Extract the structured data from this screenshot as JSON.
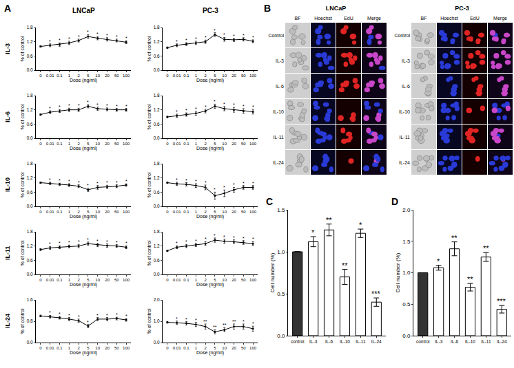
{
  "panel_labels": [
    "A",
    "B",
    "C",
    "D"
  ],
  "panel_a": {
    "columns": [
      "LNCaP",
      "PC-3"
    ],
    "rows": [
      "IL-3",
      "IL-6",
      "IL-10",
      "IL-11",
      "IL-24"
    ]
  },
  "panel_b": {
    "groups": [
      "LNCaP",
      "PC-3"
    ],
    "columns": [
      "BF",
      "Hoechst",
      "EdU",
      "Merge"
    ],
    "rows": [
      "Control",
      "IL-3",
      "IL-6",
      "IL-10",
      "IL-11",
      "IL-24"
    ]
  },
  "chart_data": [
    {
      "type": "line",
      "x_label": "Dose (ng/ml)",
      "y_label": "% of control",
      "categories": [
        "0",
        "0.01",
        "0.1",
        "1",
        "2",
        "5",
        "10",
        "20",
        "50",
        "100"
      ],
      "values": [
        1.0,
        1.05,
        1.08,
        1.15,
        1.25,
        1.42,
        1.35,
        1.3,
        1.25,
        1.18
      ],
      "errors": [
        0.03,
        0.06,
        0.07,
        0.07,
        0.06,
        0.08,
        0.07,
        0.07,
        0.06,
        0.06
      ],
      "significance": [
        null,
        "*",
        "*",
        "*",
        "*",
        "*",
        "*",
        "*",
        "*",
        "*"
      ],
      "color": "#000000",
      "marker": "circle",
      "ylim": [
        0,
        1.8
      ],
      "yticks": [
        {
          "value": 0,
          "label": "0.0"
        },
        0.6,
        1.2,
        1.8
      ]
    },
    {
      "type": "line",
      "x_label": "Dose (ng/ml)",
      "y_label": "% of control",
      "categories": [
        "0",
        "0.01",
        "0.1",
        "1",
        "2",
        "5",
        "10",
        "20",
        "50",
        "100"
      ],
      "values": [
        0.95,
        1.05,
        1.1,
        1.15,
        1.2,
        1.5,
        1.3,
        1.28,
        1.3,
        1.22
      ],
      "errors": [
        0.03,
        0.06,
        0.06,
        0.07,
        0.07,
        0.08,
        0.08,
        0.07,
        0.07,
        0.06
      ],
      "significance": [
        null,
        "*",
        "*",
        "*",
        "*",
        "*",
        "*",
        "*",
        "*",
        "*"
      ],
      "color": "#000000",
      "marker": "circle",
      "ylim": [
        0,
        1.8
      ],
      "yticks": [
        {
          "value": 0,
          "label": "0.0"
        },
        0.6,
        1.2,
        1.8
      ]
    },
    {
      "type": "line",
      "x_label": "Dose (ng/ml)",
      "y_label": "% of control",
      "categories": [
        "0",
        "0.01",
        "0.1",
        "1",
        "2",
        "5",
        "10",
        "20",
        "50",
        "100"
      ],
      "values": [
        1.0,
        1.1,
        1.15,
        1.2,
        1.2,
        1.35,
        1.25,
        1.22,
        1.2,
        1.2
      ],
      "errors": [
        0.03,
        0.06,
        0.06,
        0.07,
        0.07,
        0.07,
        0.07,
        0.06,
        0.06,
        0.06
      ],
      "significance": [
        null,
        "*",
        "*",
        "*",
        "*",
        "*",
        "*",
        "*",
        "*",
        "*"
      ],
      "color": "#000000",
      "marker": "circle",
      "ylim": [
        0,
        1.8
      ],
      "yticks": [
        {
          "value": 0,
          "label": "0.0"
        },
        0.6,
        1.2,
        1.8
      ]
    },
    {
      "type": "line",
      "x_label": "Dose (ng/ml)",
      "y_label": "% of control",
      "categories": [
        "0",
        "0.01",
        "0.1",
        "1",
        "2",
        "5",
        "10",
        "20",
        "50",
        "100"
      ],
      "values": [
        0.9,
        0.95,
        1.0,
        1.05,
        1.15,
        1.35,
        1.25,
        1.2,
        1.15,
        1.12
      ],
      "errors": [
        0.03,
        0.07,
        0.07,
        0.08,
        0.08,
        0.09,
        0.09,
        0.1,
        0.1,
        0.1
      ],
      "significance": [
        null,
        "*",
        "*",
        "*",
        "*",
        "*",
        "*",
        "*",
        "*",
        "*"
      ],
      "color": "#000000",
      "marker": "circle",
      "ylim": [
        0,
        1.8
      ],
      "yticks": [
        {
          "value": 0,
          "label": "0.0"
        },
        0.6,
        1.2,
        1.8
      ]
    },
    {
      "type": "line",
      "x_label": "Dose (ng/ml)",
      "y_label": "% of control",
      "categories": [
        "0",
        "0.01",
        "0.1",
        "1",
        "2",
        "5",
        "10",
        "20",
        "50",
        "100"
      ],
      "values": [
        1.0,
        0.97,
        0.93,
        0.9,
        0.85,
        0.7,
        0.8,
        0.82,
        0.85,
        0.9
      ],
      "errors": [
        0.03,
        0.05,
        0.05,
        0.06,
        0.06,
        0.07,
        0.08,
        0.07,
        0.06,
        0.05
      ],
      "significance": [
        null,
        "*",
        "*",
        "*",
        "*",
        "*",
        "*",
        "*",
        "*",
        "*"
      ],
      "color": "#000000",
      "marker": "circle",
      "ylim": [
        0,
        1.8
      ],
      "yticks": [
        {
          "value": 0,
          "label": "0.0"
        },
        0.6,
        1.2,
        1.8
      ]
    },
    {
      "type": "line",
      "x_label": "Dose (ng/ml)",
      "y_label": "% of control",
      "categories": [
        "0",
        "0.01",
        "0.1",
        "1",
        "2",
        "5",
        "10",
        "20",
        "50",
        "100"
      ],
      "values": [
        1.0,
        0.95,
        0.93,
        0.88,
        0.8,
        0.45,
        0.55,
        0.7,
        0.8,
        0.8
      ],
      "errors": [
        0.03,
        0.07,
        0.07,
        0.08,
        0.1,
        0.15,
        0.14,
        0.1,
        0.08,
        0.08
      ],
      "significance": [
        null,
        "*",
        "*",
        "*",
        "*",
        "*",
        "*",
        "*",
        "*",
        "*"
      ],
      "color": "#000000",
      "marker": "circle",
      "ylim": [
        0,
        1.8
      ],
      "yticks": [
        {
          "value": 0,
          "label": "0.0"
        },
        0.6,
        1.2,
        1.8
      ]
    },
    {
      "type": "line",
      "x_label": "Dose (ng/ml)",
      "y_label": "% of control",
      "categories": [
        "0",
        "0.01",
        "0.1",
        "1",
        "2",
        "5",
        "10",
        "20",
        "50",
        "100"
      ],
      "values": [
        1.05,
        1.12,
        1.15,
        1.18,
        1.2,
        1.3,
        1.25,
        1.22,
        1.2,
        1.15
      ],
      "errors": [
        0.04,
        0.06,
        0.06,
        0.06,
        0.07,
        0.07,
        0.07,
        0.07,
        0.06,
        0.06
      ],
      "significance": [
        null,
        "*",
        "*",
        "*",
        "*",
        "*",
        "*",
        "*",
        "*",
        "*"
      ],
      "color": "#000000",
      "marker": "circle",
      "ylim": [
        0,
        1.8
      ],
      "yticks": [
        {
          "value": 0,
          "label": "0.0"
        },
        0.6,
        1.2,
        1.8
      ]
    },
    {
      "type": "line",
      "x_label": "Dose (ng/ml)",
      "y_label": "% of control",
      "categories": [
        "0",
        "0.01",
        "0.1",
        "1",
        "2",
        "5",
        "10",
        "20",
        "50",
        "100"
      ],
      "values": [
        1.0,
        1.15,
        1.2,
        1.25,
        1.3,
        1.45,
        1.4,
        1.38,
        1.35,
        1.3
      ],
      "errors": [
        0.03,
        0.06,
        0.07,
        0.07,
        0.08,
        0.09,
        0.09,
        0.08,
        0.08,
        0.08
      ],
      "significance": [
        null,
        "*",
        "*",
        "*",
        "*",
        "*",
        "*",
        "*",
        "*",
        "*"
      ],
      "color": "#000000",
      "marker": "circle",
      "ylim": [
        0,
        1.8
      ],
      "yticks": [
        {
          "value": 0,
          "label": "0.0"
        },
        0.6,
        1.2,
        1.8
      ]
    },
    {
      "type": "line",
      "x_label": "Dose (ng/ml)",
      "y_label": "% of control",
      "categories": [
        "0",
        "0.01",
        "0.1",
        "1",
        "2",
        "5",
        "10",
        "20",
        "50",
        "100"
      ],
      "values": [
        1.0,
        0.97,
        0.93,
        0.88,
        0.82,
        0.62,
        0.88,
        0.88,
        0.9,
        0.85
      ],
      "errors": [
        0.03,
        0.05,
        0.05,
        0.06,
        0.06,
        0.06,
        0.06,
        0.06,
        0.05,
        0.05
      ],
      "significance": [
        null,
        "*",
        "*",
        "*",
        "*",
        "*",
        "*",
        "*",
        "*",
        "*"
      ],
      "color": "#000000",
      "marker": "circle",
      "ylim": [
        0,
        1.6
      ],
      "yticks": [
        {
          "value": 0,
          "label": "0.0"
        },
        0.8,
        1.6
      ]
    },
    {
      "type": "line",
      "x_label": "Dose (ng/ml)",
      "y_label": "% of control",
      "categories": [
        "0",
        "0.01",
        "0.1",
        "1",
        "2",
        "5",
        "10",
        "20",
        "50",
        "100"
      ],
      "values": [
        0.95,
        0.93,
        0.9,
        0.85,
        0.75,
        0.5,
        0.6,
        0.75,
        0.75,
        0.65
      ],
      "errors": [
        0.04,
        0.08,
        0.08,
        0.1,
        0.12,
        0.1,
        0.1,
        0.12,
        0.12,
        0.12
      ],
      "significance": [
        null,
        "*",
        "*",
        "*",
        "**",
        "**",
        "**",
        "**",
        "*",
        "*"
      ],
      "color": "#000000",
      "marker": "circle",
      "ylim": [
        0,
        2.0
      ],
      "yticks": [
        {
          "value": 0,
          "label": "0.0"
        },
        {
          "value": 1,
          "label": "1.0"
        },
        {
          "value": 2,
          "label": "2.0"
        }
      ]
    },
    {
      "type": "bar",
      "y_label": "Cell number (%)",
      "categories": [
        "control",
        "IL-3",
        "IL-6",
        "IL-10",
        "IL-11",
        "IL-24"
      ],
      "values": [
        1.0,
        1.12,
        1.26,
        0.7,
        1.22,
        0.4
      ],
      "errors": [
        0,
        0.06,
        0.07,
        0.09,
        0.05,
        0.05
      ],
      "significance": [
        null,
        "*",
        "**",
        "**",
        "*",
        "***"
      ],
      "colors": [
        "#333333",
        "#ffffff",
        "#ffffff",
        "#ffffff",
        "#ffffff",
        "#ffffff"
      ],
      "ylim": [
        0,
        1.5
      ],
      "yticks": [
        {
          "value": 0,
          "label": "0.0"
        },
        0.5,
        {
          "value": 1,
          "label": "1.0"
        },
        1.5
      ]
    },
    {
      "type": "bar",
      "y_label": "Cell number (%)",
      "categories": [
        "control",
        "IL-3",
        "IL-6",
        "IL-10",
        "IL-11",
        "IL-24"
      ],
      "values": [
        1.0,
        1.08,
        1.38,
        0.77,
        1.25,
        0.42
      ],
      "errors": [
        0,
        0.04,
        0.11,
        0.06,
        0.07,
        0.06
      ],
      "significance": [
        null,
        "*",
        "**",
        "**",
        "**",
        "***"
      ],
      "colors": [
        "#333333",
        "#ffffff",
        "#ffffff",
        "#ffffff",
        "#ffffff",
        "#ffffff"
      ],
      "ylim": [
        0,
        2.0
      ],
      "yticks": [
        {
          "value": 0,
          "label": "0.0"
        },
        0.5,
        {
          "value": 1,
          "label": "1.0"
        },
        1.5,
        {
          "value": 2,
          "label": "2.0"
        }
      ]
    }
  ]
}
